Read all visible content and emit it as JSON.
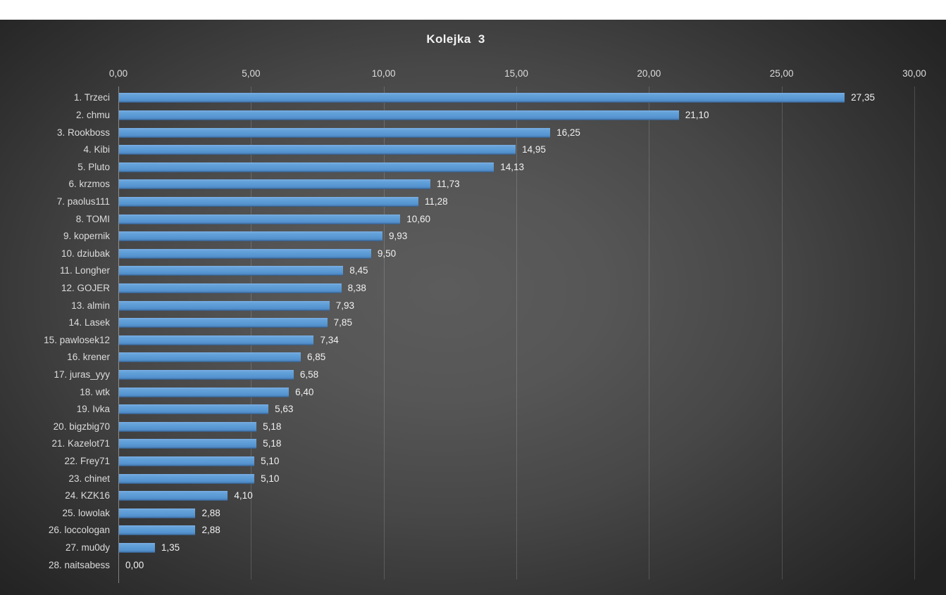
{
  "chart_data": {
    "type": "bar",
    "orientation": "horizontal",
    "title": "Kolejka  3",
    "categories": [
      "1. Trzeci",
      "2. chmu",
      "3. Rookboss",
      "4. Kibi",
      "5. Pluto",
      "6. krzmos",
      "7. paolus111",
      "8. TOMI",
      "9. kopernik",
      "10. dziubak",
      "11. Longher",
      "12. GOJER",
      "13. almin",
      "14. Lasek",
      "15. pawlosek12",
      "16. krener",
      "17. juras_yyy",
      "18. wtk",
      "19. Ivka",
      "20. bigzbig70",
      "21. Kazelot71",
      "22. Frey71",
      "23. chinet",
      "24. KZK16",
      "25. lowolak",
      "26. loccologan",
      "27. mu0dy",
      "28. naitsabess"
    ],
    "values": [
      27.35,
      21.1,
      16.25,
      14.95,
      14.13,
      11.73,
      11.28,
      10.6,
      9.93,
      9.5,
      8.45,
      8.38,
      7.93,
      7.85,
      7.34,
      6.85,
      6.58,
      6.4,
      5.63,
      5.18,
      5.18,
      5.1,
      5.1,
      4.1,
      2.88,
      2.88,
      1.35,
      0.0
    ],
    "value_labels": [
      "27,35",
      "21,10",
      "16,25",
      "14,95",
      "14,13",
      "11,73",
      "11,28",
      "10,60",
      "9,93",
      "9,50",
      "8,45",
      "8,38",
      "7,93",
      "7,85",
      "7,34",
      "6,85",
      "6,58",
      "6,40",
      "5,63",
      "5,18",
      "5,18",
      "5,10",
      "5,10",
      "4,10",
      "2,88",
      "2,88",
      "1,35",
      "0,00"
    ],
    "x_ticks": [
      0,
      5,
      10,
      15,
      20,
      25,
      30
    ],
    "x_tick_labels": [
      "0,00",
      "5,00",
      "10,00",
      "15,00",
      "20,00",
      "25,00",
      "30,00"
    ],
    "xlim": [
      0,
      30
    ],
    "grid": true,
    "legend": "none",
    "axis_position": "top",
    "colors": {
      "bar": "#5b9bd5",
      "background_center": "#595959",
      "background_edge": "#262626",
      "tick_text": "#dcdcdc",
      "category_text": "#dcdcdc",
      "value_text": "#f1f1f1",
      "title_text": "#f2f2f2",
      "gridline": "rgba(255,255,255,0.16)"
    }
  }
}
